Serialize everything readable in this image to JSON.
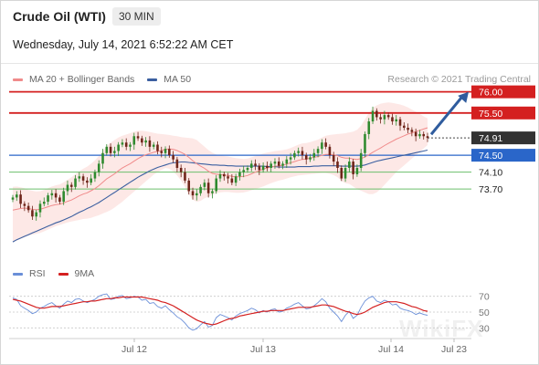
{
  "header": {
    "title": "Crude Oil (WTI)",
    "timeframe": "30 MIN",
    "datetime": "Wednesday, July 14, 2021 6:52:22 AM CET"
  },
  "legend": {
    "ma20": "MA 20 + Bollinger Bands",
    "ma50": "MA 50",
    "credit": "Research © 2021 Trading Central"
  },
  "rsi_legend": {
    "rsi": "RSI",
    "ma9": "9MA"
  },
  "watermark": "WikiFX",
  "colors": {
    "resistance": "#d42020",
    "pivot": "#2a66c9",
    "support": "#6cbf6c",
    "price_tag": "#333333",
    "ma20": "#f08b8b",
    "ma50": "#3b5fa0",
    "bollinger": "#fde4e2",
    "candle_up": "#2f8a2f",
    "candle_down": "#6e2419",
    "arrow": "#2f5c9e",
    "rsi": "#6a8fd8",
    "rsi_ma": "#d42020"
  },
  "chart_data": [
    {
      "type": "candlestick",
      "title": "Crude Oil (WTI)",
      "timeframe": "30 MIN",
      "x_ticks": [
        "Jul 12",
        "Jul 13",
        "Jul 14",
        "Jul 23"
      ],
      "ylim": [
        72.3,
        76.1
      ],
      "last_price": 74.91,
      "levels": [
        {
          "value": 76.0,
          "label": "76.00",
          "kind": "resistance"
        },
        {
          "value": 75.5,
          "label": "75.50",
          "kind": "resistance"
        },
        {
          "value": 74.91,
          "label": "74.91",
          "kind": "price"
        },
        {
          "value": 74.5,
          "label": "74.50",
          "kind": "pivot"
        },
        {
          "value": 74.1,
          "label": "74.10",
          "kind": "support"
        },
        {
          "value": 73.7,
          "label": "73.70",
          "kind": "support"
        }
      ],
      "target_arrow": {
        "from": 74.95,
        "to": 76.0
      },
      "close": [
        73.5,
        73.57,
        73.35,
        73.3,
        73.2,
        73.05,
        73.15,
        73.35,
        73.4,
        73.55,
        73.6,
        73.5,
        73.4,
        73.65,
        73.8,
        73.75,
        73.95,
        74.0,
        73.9,
        73.85,
        73.95,
        74.1,
        74.3,
        74.55,
        74.7,
        74.55,
        74.6,
        74.75,
        74.8,
        74.7,
        74.75,
        74.95,
        74.9,
        74.8,
        74.85,
        74.7,
        74.75,
        74.6,
        74.55,
        74.65,
        74.5,
        74.4,
        74.2,
        74.1,
        73.9,
        73.65,
        73.55,
        73.6,
        73.75,
        73.85,
        73.6,
        73.65,
        73.95,
        74.05,
        74.0,
        73.95,
        73.85,
        74.0,
        74.1,
        74.15,
        74.2,
        74.3,
        74.25,
        74.15,
        74.25,
        74.2,
        74.3,
        74.35,
        74.25,
        74.3,
        74.4,
        74.45,
        74.55,
        74.6,
        74.5,
        74.4,
        74.45,
        74.55,
        74.65,
        74.8,
        74.7,
        74.5,
        74.35,
        74.2,
        73.95,
        74.2,
        74.35,
        74.05,
        74.2,
        74.55,
        75.0,
        75.3,
        75.55,
        75.4,
        75.35,
        75.45,
        75.4,
        75.3,
        75.35,
        75.2,
        75.15,
        75.1,
        75.05,
        74.95,
        75.0,
        74.95,
        74.91
      ],
      "ma20": [
        73.2,
        73.22,
        73.24,
        73.25,
        73.24,
        73.22,
        73.21,
        73.22,
        73.25,
        73.28,
        73.31,
        73.33,
        73.34,
        73.37,
        73.41,
        73.44,
        73.49,
        73.54,
        73.58,
        73.61,
        73.66,
        73.71,
        73.78,
        73.86,
        73.94,
        74.0,
        74.06,
        74.13,
        74.2,
        74.25,
        74.3,
        74.36,
        74.42,
        74.47,
        74.51,
        74.54,
        74.57,
        74.59,
        74.61,
        74.64,
        74.65,
        74.64,
        74.61,
        74.57,
        74.52,
        74.45,
        74.37,
        74.3,
        74.24,
        74.19,
        74.12,
        74.07,
        74.05,
        74.04,
        74.03,
        74.02,
        74.0,
        73.99,
        73.99,
        74.0,
        74.02,
        74.06,
        74.1,
        74.13,
        74.17,
        74.2,
        74.22,
        74.24,
        74.25,
        74.26,
        74.29,
        74.32,
        74.35,
        74.38,
        74.4,
        74.41,
        74.43,
        74.45,
        74.47,
        74.5,
        74.52,
        74.52,
        74.51,
        74.49,
        74.45,
        74.43,
        74.43,
        74.41,
        74.4,
        74.42,
        74.46,
        74.51,
        74.57,
        74.62,
        74.67,
        74.73,
        74.78,
        74.83,
        74.88,
        74.92,
        74.96,
        75.0,
        75.03,
        75.06,
        75.09,
        75.12,
        75.15
      ],
      "bb_upper": [
        73.75,
        73.76,
        73.74,
        73.72,
        73.68,
        73.66,
        73.64,
        73.65,
        73.68,
        73.72,
        73.76,
        73.79,
        73.81,
        73.86,
        73.92,
        73.98,
        74.05,
        74.12,
        74.18,
        74.23,
        74.3,
        74.38,
        74.48,
        74.6,
        74.72,
        74.8,
        74.86,
        74.92,
        74.96,
        74.99,
        75.02,
        75.06,
        75.08,
        75.08,
        75.07,
        75.05,
        75.03,
        75.01,
        75.0,
        74.99,
        74.98,
        74.96,
        74.95,
        74.93,
        74.92,
        74.91,
        74.9,
        74.86,
        74.78,
        74.7,
        74.62,
        74.56,
        74.52,
        74.5,
        74.48,
        74.47,
        74.45,
        74.43,
        74.42,
        74.41,
        74.42,
        74.45,
        74.48,
        74.51,
        74.54,
        74.56,
        74.58,
        74.6,
        74.61,
        74.62,
        74.64,
        74.67,
        74.71,
        74.75,
        74.78,
        74.79,
        74.81,
        74.84,
        74.87,
        74.92,
        74.96,
        74.98,
        74.99,
        75.0,
        75.01,
        75.02,
        75.04,
        75.06,
        75.1,
        75.2,
        75.35,
        75.5,
        75.62,
        75.68,
        75.72,
        75.74,
        75.75,
        75.74,
        75.72,
        75.7,
        75.67,
        75.63,
        75.58,
        75.53,
        75.48,
        75.42,
        75.37
      ],
      "bb_lower": [
        72.45,
        72.48,
        72.52,
        72.56,
        72.6,
        72.62,
        72.64,
        72.66,
        72.7,
        72.74,
        72.78,
        72.82,
        72.85,
        72.88,
        72.91,
        72.93,
        72.95,
        72.97,
        72.99,
        73.0,
        73.02,
        73.05,
        73.08,
        73.12,
        73.16,
        73.2,
        73.26,
        73.33,
        73.4,
        73.48,
        73.56,
        73.64,
        73.72,
        73.8,
        73.88,
        73.96,
        74.04,
        74.1,
        74.15,
        74.2,
        74.18,
        74.12,
        74.02,
        73.9,
        73.75,
        73.58,
        73.45,
        73.4,
        73.42,
        73.48,
        73.52,
        73.56,
        73.6,
        73.62,
        73.63,
        73.63,
        73.62,
        73.61,
        73.61,
        73.62,
        73.64,
        73.67,
        73.7,
        73.73,
        73.76,
        73.8,
        73.84,
        73.87,
        73.9,
        73.92,
        73.95,
        73.98,
        74.0,
        74.02,
        74.03,
        74.04,
        74.05,
        74.06,
        74.07,
        74.08,
        74.08,
        74.06,
        74.03,
        73.98,
        73.89,
        73.84,
        73.82,
        73.76,
        73.7,
        73.66,
        73.62,
        73.58,
        73.58,
        73.62,
        73.7,
        73.8,
        73.9,
        74.0,
        74.1,
        74.18,
        74.26,
        74.34,
        74.42,
        74.5,
        74.58,
        74.66,
        74.74
      ],
      "ma50": [
        72.45,
        72.5,
        72.54,
        72.58,
        72.62,
        72.66,
        72.7,
        72.74,
        72.78,
        72.82,
        72.86,
        72.9,
        72.93,
        72.97,
        73.01,
        73.05,
        73.1,
        73.15,
        73.19,
        73.24,
        73.28,
        73.33,
        73.38,
        73.44,
        73.5,
        73.56,
        73.62,
        73.68,
        73.74,
        73.8,
        73.86,
        73.92,
        73.98,
        74.03,
        74.08,
        74.13,
        74.17,
        74.21,
        74.24,
        74.27,
        74.3,
        74.32,
        74.33,
        74.34,
        74.34,
        74.33,
        74.32,
        74.31,
        74.3,
        74.29,
        74.28,
        74.27,
        74.27,
        74.26,
        74.26,
        74.25,
        74.25,
        74.24,
        74.24,
        74.24,
        74.24,
        74.24,
        74.24,
        74.24,
        74.24,
        74.23,
        74.23,
        74.23,
        74.22,
        74.22,
        74.22,
        74.22,
        74.22,
        74.23,
        74.23,
        74.23,
        74.23,
        74.24,
        74.24,
        74.25,
        74.25,
        74.25,
        74.25,
        74.25,
        74.24,
        74.24,
        74.24,
        74.24,
        74.24,
        74.25,
        74.27,
        74.3,
        74.33,
        74.36,
        74.38,
        74.4,
        74.42,
        74.44,
        74.46,
        74.48,
        74.5,
        74.52,
        74.54,
        74.56,
        74.58,
        74.6,
        74.62
      ]
    },
    {
      "type": "line",
      "title": "RSI",
      "x_ticks": [
        "Jul 12",
        "Jul 13",
        "Jul 14",
        "Jul 23"
      ],
      "y_ticks": [
        70,
        50,
        30
      ],
      "ylim": [
        20,
        80
      ],
      "series": [
        {
          "name": "RSI",
          "values": [
            68,
            66,
            58,
            55,
            52,
            48,
            50,
            55,
            57,
            60,
            62,
            58,
            55,
            60,
            64,
            62,
            66,
            67,
            64,
            62,
            64,
            66,
            70,
            72,
            73,
            66,
            67,
            70,
            71,
            67,
            68,
            70,
            69,
            65,
            66,
            61,
            62,
            57,
            55,
            58,
            53,
            49,
            44,
            41,
            36,
            30,
            27,
            29,
            34,
            38,
            31,
            33,
            43,
            47,
            45,
            43,
            40,
            45,
            48,
            50,
            52,
            55,
            53,
            49,
            52,
            50,
            53,
            54,
            50,
            51,
            55,
            57,
            60,
            62,
            58,
            54,
            55,
            58,
            62,
            67,
            63,
            55,
            50,
            45,
            38,
            46,
            51,
            42,
            46,
            56,
            64,
            68,
            70,
            64,
            62,
            65,
            63,
            59,
            60,
            55,
            53,
            52,
            50,
            47,
            49,
            47,
            46
          ]
        },
        {
          "name": "9MA",
          "values": [
            66,
            65,
            64,
            62,
            60,
            58,
            56,
            55,
            55,
            56,
            57,
            57,
            57,
            58,
            59,
            60,
            61,
            62,
            63,
            63,
            64,
            64,
            65,
            66,
            67,
            67,
            68,
            68,
            69,
            69,
            69,
            69,
            69,
            69,
            68,
            67,
            66,
            65,
            63,
            62,
            60,
            58,
            55,
            52,
            49,
            46,
            43,
            40,
            38,
            36,
            35,
            34,
            35,
            37,
            39,
            41,
            42,
            43,
            45,
            46,
            47,
            48,
            49,
            50,
            51,
            51,
            52,
            52,
            52,
            52,
            53,
            54,
            55,
            56,
            56,
            56,
            56,
            57,
            58,
            59,
            59,
            58,
            57,
            55,
            53,
            51,
            50,
            48,
            47,
            48,
            50,
            53,
            56,
            58,
            60,
            62,
            63,
            63,
            63,
            62,
            61,
            59,
            57,
            56,
            54,
            52,
            51
          ]
        }
      ]
    }
  ]
}
